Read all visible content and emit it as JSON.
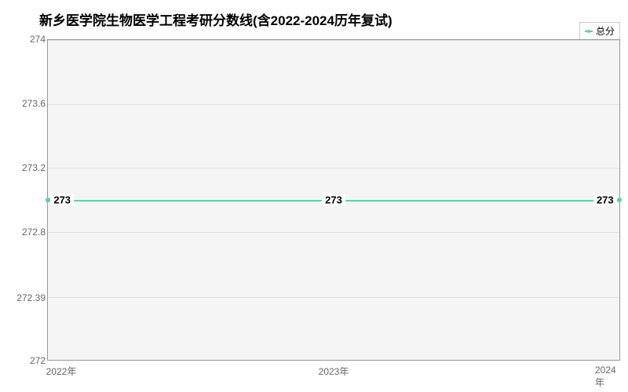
{
  "chart": {
    "type": "line",
    "title": "新乡医学院生物医学工程考研分数线(含2022-2024历年复试)",
    "title_fontsize": 17,
    "legend": {
      "label": "总分",
      "color": "#5fcfb0"
    },
    "background_color": "#f5f5f5",
    "grid_color": "#e0e0e0",
    "border_color": "#999999",
    "x_categories": [
      "2022年",
      "2023年",
      "2024年"
    ],
    "y_ticks": [
      "272",
      "272.39",
      "272.8",
      "273.2",
      "273.6",
      "274"
    ],
    "ylim": [
      272,
      274
    ],
    "data": {
      "values": [
        273,
        273,
        273
      ],
      "labels": [
        "273",
        "273",
        "273"
      ],
      "color": "#5fcfb0",
      "line_width": 2
    },
    "label_fontsize": 12
  }
}
